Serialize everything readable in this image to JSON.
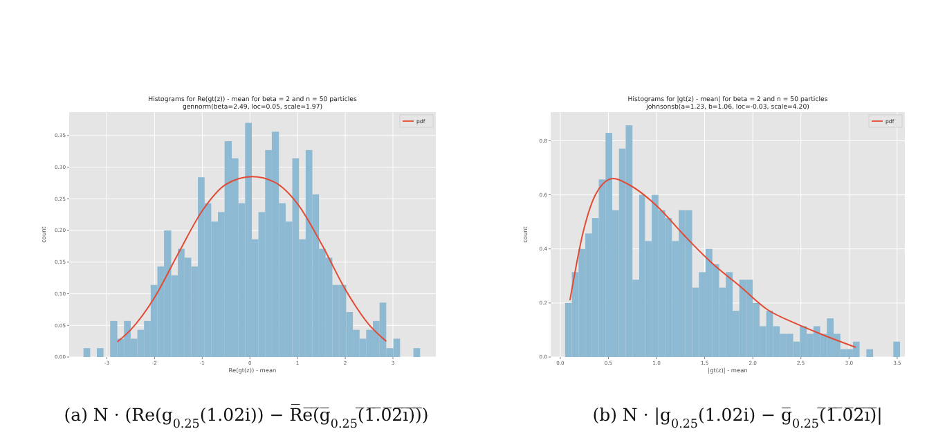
{
  "chart_data": [
    {
      "type": "histogram",
      "title": "Histograms for Re(gt(z)) - mean for beta = 2 and n = 50 particles",
      "subtitle": "gennorm(beta=2.49, loc=0.05, scale=1.97)",
      "xlabel": "Re(gt(z)) - mean",
      "ylabel": "count",
      "xlim": [
        -3.79,
        3.9
      ],
      "ylim": [
        0,
        0.387
      ],
      "xticks": [
        -3,
        -2,
        -1,
        0,
        1,
        2,
        3
      ],
      "yticks": [
        {
          "value": 0,
          "label": "0.00"
        },
        {
          "value": 0.05,
          "label": "0.05"
        },
        {
          "value": 0.1,
          "label": "0.10"
        },
        {
          "value": 0.15,
          "label": "0.15"
        },
        {
          "value": 0.2,
          "label": "0.20"
        },
        {
          "value": 0.25,
          "label": "0.25"
        },
        {
          "value": 0.3,
          "label": "0.30"
        },
        {
          "value": 0.35,
          "label": "0.35"
        }
      ],
      "grid": true,
      "legend": "top right",
      "annotations": [
        "(a) N · (Re(g$_{0.25}$(1.02i)) − R̅e̅(̅g̅$_{0.25}$(̅1̅.̅0̅2̅i̅)̅)̅)"
      ],
      "series": [
        {
          "color": "#8db9d3",
          "bins": [
            -3.49,
            -3.35,
            -3.21,
            -3.07,
            -2.93,
            -2.78,
            -2.64,
            -2.5,
            -2.36,
            -2.22,
            -2.08,
            -1.94,
            -1.8,
            -1.65,
            -1.51,
            -1.37,
            -1.23,
            -1.09,
            -0.95,
            -0.81,
            -0.67,
            -0.53,
            -0.38,
            -0.24,
            -0.1,
            0.04,
            0.18,
            0.32,
            0.46,
            0.61,
            0.75,
            0.89,
            1.03,
            1.17,
            1.31,
            1.45,
            1.59,
            1.73,
            1.88,
            2.02,
            2.16,
            2.3,
            2.44,
            2.58,
            2.72,
            2.86,
            3.01,
            3.15,
            3.43,
            3.57
          ],
          "values": [
            0.014,
            0,
            0.014,
            0,
            0.057,
            0.029,
            0.057,
            0.029,
            0.043,
            0.057,
            0.114,
            0.143,
            0.2,
            0.129,
            0.171,
            0.157,
            0.143,
            0.284,
            0.243,
            0.214,
            0.229,
            0.341,
            0.314,
            0.243,
            0.37,
            0.186,
            0.229,
            0.327,
            0.356,
            0.243,
            0.214,
            0.314,
            0.186,
            0.327,
            0.257,
            0.171,
            0.157,
            0.114,
            0.114,
            0.071,
            0.043,
            0.029,
            0.043,
            0.057,
            0.086,
            0.014,
            0.029,
            0,
            0.014
          ]
        },
        {
          "type": "line",
          "name": "pdf",
          "color": "#e24a33",
          "x": [
            -2.78,
            -2.5,
            -2,
            -1.5,
            -1,
            -0.5,
            0.05,
            0.5,
            1,
            1.5,
            2,
            2.5,
            2.86
          ],
          "values": [
            0.024,
            0.043,
            0.094,
            0.164,
            0.231,
            0.273,
            0.285,
            0.277,
            0.242,
            0.179,
            0.107,
            0.051,
            0.025
          ]
        }
      ]
    },
    {
      "type": "histogram",
      "title": "Histograms for |gt(z) - mean| for beta = 2 and n = 50 particles",
      "subtitle": "johnsonsb(a=1.23, b=1.06, loc=-0.03, scale=4.20)",
      "xlabel": "|gt(z)| - mean",
      "ylabel": "count",
      "xlim": [
        -0.1,
        3.58
      ],
      "ylim": [
        0,
        0.906
      ],
      "xticks": [
        {
          "value": 0,
          "label": "0.0"
        },
        {
          "value": 0.5,
          "label": "0.5"
        },
        {
          "value": 1,
          "label": "1.0"
        },
        {
          "value": 1.5,
          "label": "1.5"
        },
        {
          "value": 2,
          "label": "2.0"
        },
        {
          "value": 2.5,
          "label": "2.5"
        },
        {
          "value": 3,
          "label": "3.0"
        },
        {
          "value": 3.5,
          "label": "3.5"
        }
      ],
      "yticks": [
        {
          "value": 0,
          "label": "0.0"
        },
        {
          "value": 0.2,
          "label": "0.2"
        },
        {
          "value": 0.4,
          "label": "0.4"
        },
        {
          "value": 0.6,
          "label": "0.6"
        },
        {
          "value": 0.8,
          "label": "0.8"
        }
      ],
      "grid": true,
      "legend": "top right",
      "annotations": [
        "(b) N · |g$_{0.25}$(1.02i) − g̅$_{0.25}$(̅1̅.̅0̅2̅i̅)̅|"
      ],
      "series": [
        {
          "color": "#8db9d3",
          "bins": [
            0.05,
            0.12,
            0.19,
            0.26,
            0.33,
            0.4,
            0.47,
            0.54,
            0.61,
            0.68,
            0.75,
            0.82,
            0.88,
            0.95,
            1.02,
            1.09,
            1.16,
            1.23,
            1.3,
            1.37,
            1.44,
            1.51,
            1.58,
            1.65,
            1.72,
            1.79,
            1.86,
            1.93,
            2,
            2.07,
            2.14,
            2.21,
            2.28,
            2.35,
            2.42,
            2.49,
            2.56,
            2.63,
            2.7,
            2.77,
            2.84,
            2.91,
            2.97,
            3.04,
            3.11,
            3.18,
            3.25,
            3.46,
            3.53
          ],
          "values": [
            0.2,
            0.314,
            0.4,
            0.457,
            0.514,
            0.657,
            0.829,
            0.543,
            0.771,
            0.857,
            0.286,
            0.6,
            0.429,
            0.6,
            0.543,
            0.514,
            0.429,
            0.543,
            0.543,
            0.257,
            0.314,
            0.4,
            0.343,
            0.257,
            0.314,
            0.171,
            0.286,
            0.286,
            0.2,
            0.114,
            0.171,
            0.114,
            0.086,
            0.086,
            0.057,
            0.114,
            0.086,
            0.114,
            0.086,
            0.143,
            0.086,
            0.029,
            0.029,
            0.057,
            0,
            0.029,
            0,
            0.057
          ]
        },
        {
          "type": "line",
          "name": "pdf",
          "color": "#e24a33",
          "x": [
            0.1,
            0.24,
            0.38,
            0.55,
            0.72,
            1,
            1.29,
            1.58,
            1.87,
            2.15,
            2.44,
            2.73,
            3.07
          ],
          "values": [
            0.21,
            0.466,
            0.61,
            0.66,
            0.636,
            0.56,
            0.449,
            0.346,
            0.261,
            0.176,
            0.125,
            0.082,
            0.036
          ]
        }
      ]
    }
  ]
}
